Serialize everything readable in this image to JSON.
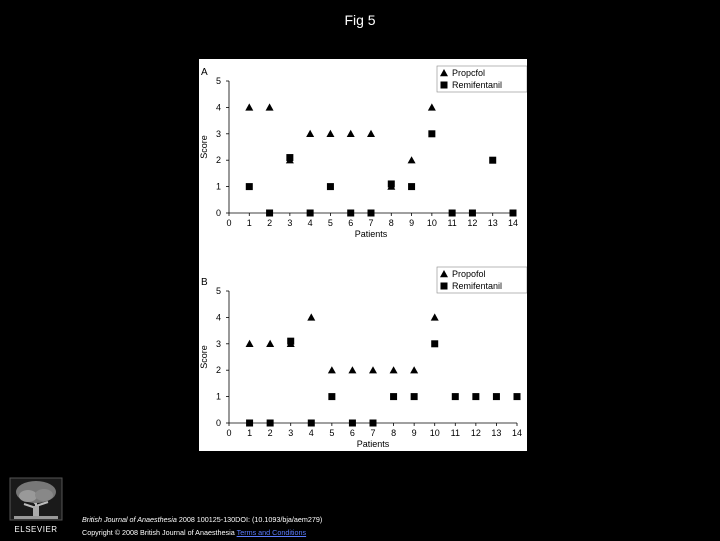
{
  "page": {
    "title": "Fig 5"
  },
  "footer": {
    "journal": "British Journal of Anaesthesia",
    "citation": " 2008 100125-130DOI: (10.1093/bja/aem279)",
    "copyright": "Copyright © 2008 British Journal of Anaesthesia",
    "link": "Terms and Conditions"
  },
  "logo": {
    "text": "ELSEVIER",
    "icon": "tree-icon"
  },
  "colors": {
    "background": "#000000",
    "panel": "#ffffff",
    "marker": "#000000",
    "link": "#5b7cff"
  },
  "chart_data": [
    {
      "type": "scatter",
      "panel_label": "A",
      "xlabel": "Patients",
      "ylabel": "Score",
      "xlim": [
        0,
        14
      ],
      "ylim": [
        0,
        5
      ],
      "xticks": [
        0,
        1,
        2,
        3,
        4,
        5,
        6,
        7,
        8,
        9,
        10,
        11,
        12,
        13,
        14
      ],
      "yticks": [
        0,
        1,
        2,
        3,
        4,
        5
      ],
      "legend_position": "top-right",
      "series": [
        {
          "name": "Propcfol",
          "marker": "triangle",
          "points": [
            [
              1,
              4
            ],
            [
              2,
              4
            ],
            [
              3,
              2
            ],
            [
              4,
              3
            ],
            [
              5,
              3
            ],
            [
              6,
              3
            ],
            [
              7,
              3
            ],
            [
              8,
              1
            ],
            [
              9,
              2
            ],
            [
              10,
              4
            ]
          ]
        },
        {
          "name": "Remifentanil",
          "marker": "square",
          "points": [
            [
              1,
              1
            ],
            [
              2,
              0
            ],
            [
              3,
              2.1
            ],
            [
              4,
              0
            ],
            [
              5,
              1
            ],
            [
              6,
              0
            ],
            [
              7,
              0
            ],
            [
              8,
              1.1
            ],
            [
              9,
              1
            ],
            [
              10,
              3
            ],
            [
              11,
              0
            ],
            [
              12,
              0
            ],
            [
              13,
              2
            ],
            [
              14,
              0
            ]
          ]
        }
      ]
    },
    {
      "type": "scatter",
      "panel_label": "B",
      "xlabel": "Patients",
      "ylabel": "Score",
      "xlim": [
        0,
        14
      ],
      "ylim": [
        0,
        5
      ],
      "xticks": [
        0,
        1,
        2,
        3,
        4,
        5,
        6,
        7,
        8,
        9,
        10,
        11,
        12,
        13,
        14
      ],
      "yticks": [
        0,
        1,
        2,
        3,
        4,
        5
      ],
      "legend_position": "top-right",
      "series": [
        {
          "name": "Propofol",
          "marker": "triangle",
          "points": [
            [
              1,
              3
            ],
            [
              2,
              3
            ],
            [
              3,
              3
            ],
            [
              4,
              4
            ],
            [
              5,
              2
            ],
            [
              6,
              2
            ],
            [
              7,
              2
            ],
            [
              8,
              2
            ],
            [
              9,
              2
            ],
            [
              10,
              4
            ]
          ]
        },
        {
          "name": "Remifentanil",
          "marker": "square",
          "points": [
            [
              1,
              0
            ],
            [
              2,
              0
            ],
            [
              3,
              3.1
            ],
            [
              4,
              0
            ],
            [
              5,
              1
            ],
            [
              6,
              0
            ],
            [
              7,
              0
            ],
            [
              8,
              1
            ],
            [
              9,
              1
            ],
            [
              10,
              3
            ],
            [
              11,
              1
            ],
            [
              12,
              1
            ],
            [
              13,
              1
            ],
            [
              14,
              1
            ]
          ]
        }
      ]
    }
  ]
}
